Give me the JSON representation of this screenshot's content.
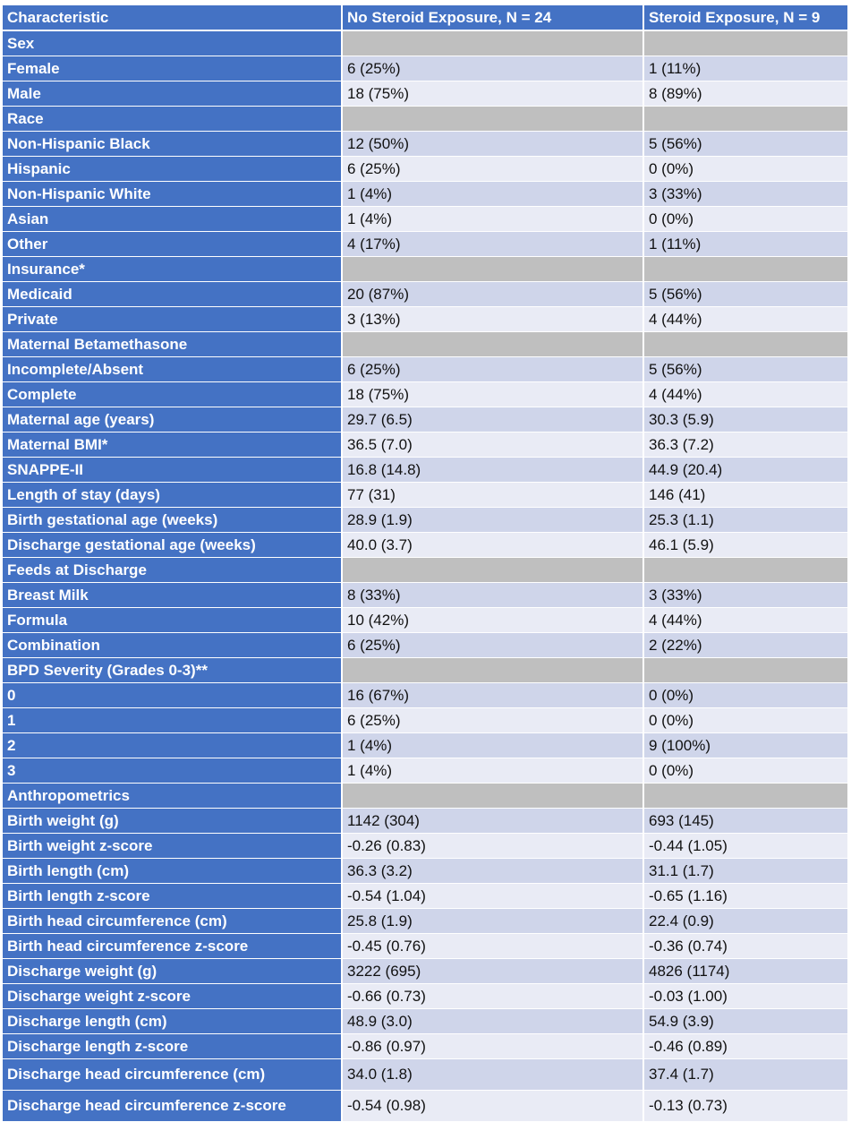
{
  "table": {
    "headers": [
      "Characteristic",
      "No Steroid Exposure, N = 24",
      "Steroid Exposure, N = 9"
    ],
    "rows": [
      {
        "type": "section",
        "label": "Sex"
      },
      {
        "type": "data",
        "label": "Female",
        "a": "6 (25%)",
        "b": "1 (11%)"
      },
      {
        "type": "data",
        "label": "Male",
        "a": "18 (75%)",
        "b": "8 (89%)"
      },
      {
        "type": "section",
        "label": "Race"
      },
      {
        "type": "data",
        "label": "Non-Hispanic  Black",
        "a": "12 (50%)",
        "b": "5 (56%)"
      },
      {
        "type": "data",
        "label": "Hispanic",
        "a": "6 (25%)",
        "b": "0 (0%)"
      },
      {
        "type": "data",
        "label": "Non-Hispanic  White",
        "a": "1 (4%)",
        "b": "3 (33%)"
      },
      {
        "type": "data",
        "label": "Asian",
        "a": "1 (4%)",
        "b": "0 (0%)"
      },
      {
        "type": "data",
        "label": "Other",
        "a": "4 (17%)",
        "b": "1 (11%)"
      },
      {
        "type": "section",
        "label": "Insurance*"
      },
      {
        "type": "data",
        "label": "Medicaid",
        "a": "20 (87%)",
        "b": "5 (56%)"
      },
      {
        "type": "data",
        "label": "Private",
        "a": "3 (13%)",
        "b": "4 (44%)"
      },
      {
        "type": "section",
        "label": "Maternal Betamethasone"
      },
      {
        "type": "data",
        "label": "Incomplete/Absent",
        "a": "6 (25%)",
        "b": "5 (56%)"
      },
      {
        "type": "data",
        "label": "Complete",
        "a": "18 (75%)",
        "b": "4 (44%)"
      },
      {
        "type": "data",
        "label": "Maternal age (years)",
        "a": "29.7 (6.5)",
        "b": "30.3 (5.9)"
      },
      {
        "type": "data",
        "label": "Maternal BMI*",
        "a": "36.5 (7.0)",
        "b": "36.3 (7.2)"
      },
      {
        "type": "data",
        "label": "SNAPPE-II",
        "a": "16.8 (14.8)",
        "b": "44.9 (20.4)"
      },
      {
        "type": "data",
        "label": "Length of stay (days)",
        "a": "77 (31)",
        "b": "146 (41)"
      },
      {
        "type": "data",
        "label": "Birth gestational age (weeks)",
        "a": "28.9 (1.9)",
        "b": "25.3 (1.1)"
      },
      {
        "type": "data",
        "label": "Discharge gestational age (weeks)",
        "a": "40.0 (3.7)",
        "b": "46.1 (5.9)"
      },
      {
        "type": "section",
        "label": "Feeds at Discharge"
      },
      {
        "type": "data",
        "label": "Breast Milk",
        "a": "8 (33%)",
        "b": "3 (33%)"
      },
      {
        "type": "data",
        "label": "Formula",
        "a": "10 (42%)",
        "b": "4 (44%)"
      },
      {
        "type": "data",
        "label": "Combination",
        "a": "6 (25%)",
        "b": "2 (22%)"
      },
      {
        "type": "section",
        "label": "BPD Severity (Grades 0-3)**"
      },
      {
        "type": "data",
        "label": "0",
        "a": "16 (67%)",
        "b": "0 (0%)"
      },
      {
        "type": "data",
        "label": "1",
        "a": "6 (25%)",
        "b": "0 (0%)"
      },
      {
        "type": "data",
        "label": "2",
        "a": "1 (4%)",
        "b": "9 (100%)"
      },
      {
        "type": "data",
        "label": "3",
        "a": "1 (4%)",
        "b": "0 (0%)"
      },
      {
        "type": "section",
        "label": "Anthropometrics"
      },
      {
        "type": "data",
        "label": "Birth weight (g)",
        "a": "1142 (304)",
        "b": "693 (145)"
      },
      {
        "type": "data",
        "label": "Birth weight z-score",
        "a": "-0.26 (0.83)",
        "b": "-0.44 (1.05)"
      },
      {
        "type": "data",
        "label": "Birth length (cm)",
        "a": "36.3 (3.2)",
        "b": "31.1 (1.7)"
      },
      {
        "type": "data",
        "label": "Birth length z-score",
        "a": "-0.54 (1.04)",
        "b": "-0.65 (1.16)"
      },
      {
        "type": "data",
        "label": "Birth head circumference (cm)",
        "a": "25.8 (1.9)",
        "b": "22.4 (0.9)"
      },
      {
        "type": "data",
        "label": "Birth head circumference z-score",
        "a": "-0.45 (0.76)",
        "b": "-0.36 (0.74)"
      },
      {
        "type": "data",
        "label": "Discharge weight (g)",
        "a": "3222 (695)",
        "b": "4826 (1174)"
      },
      {
        "type": "data",
        "label": "Discharge weight z-score",
        "a": "-0.66 (0.73)",
        "b": "-0.03 (1.00)"
      },
      {
        "type": "data",
        "label": "Discharge length (cm)",
        "a": "48.9 (3.0)",
        "b": "54.9 (3.9)"
      },
      {
        "type": "data",
        "label": "Discharge length z-score",
        "a": "-0.86 (0.97)",
        "b": "-0.46 (0.89)"
      },
      {
        "type": "data",
        "label": "Discharge head circumference (cm)",
        "a": "34.0 (1.8)",
        "b": "37.4 (1.7)",
        "tall": true
      },
      {
        "type": "data",
        "label": "Discharge head circumference z-score",
        "a": "-0.54 (0.98)",
        "b": "-0.13 (0.73)",
        "tall": true
      }
    ]
  },
  "colors": {
    "header_blue": "#4472c4",
    "section_gray": "#bfbfbf",
    "row_light": "#e9ebf5",
    "row_dark": "#cfd5ea"
  }
}
